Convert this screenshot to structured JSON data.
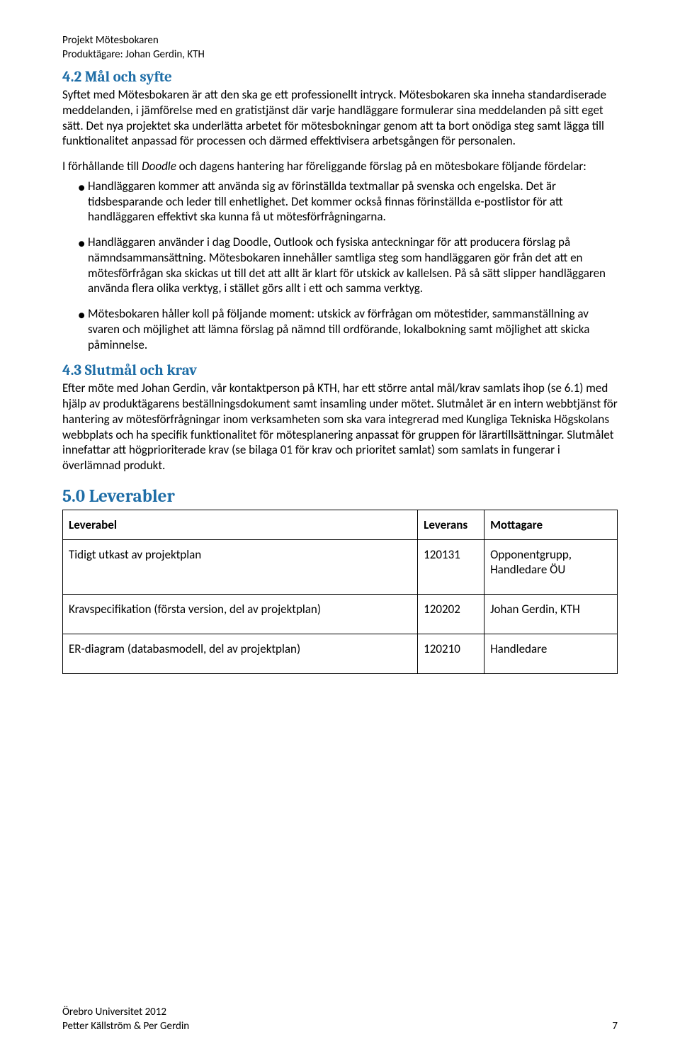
{
  "header": {
    "line1": "Projekt Mötesbokaren",
    "line2": "Produktägare: Johan Gerdin, KTH"
  },
  "sections": {
    "s42": {
      "title": "4.2 Mål och syfte",
      "p1": "Syftet med Mötesbokaren är att den ska ge ett professionellt intryck. Mötesbokaren ska inneha standardiserade meddelanden, i jämförelse med en gratistjänst där varje handläggare formulerar sina meddelanden på sitt eget sätt. Det nya projektet ska underlätta arbetet för mötesbokningar genom att ta bort onödiga steg samt lägga till funktionalitet anpassad för processen och därmed effektivisera arbetsgången för personalen.",
      "p2_pre": "I förhållande till ",
      "p2_italic": "Doodle",
      "p2_post": " och dagens hantering har föreliggande förslag på en mötesbokare följande fördelar:",
      "bullets": [
        "Handläggaren kommer att använda sig av förinställda textmallar på svenska och engelska. Det är tidsbesparande och leder till enhetlighet. Det kommer också finnas förinställda e-postlistor för att handläggaren effektivt ska kunna få ut mötesförfrågningarna.",
        "Handläggaren använder i dag Doodle, Outlook och fysiska anteckningar för att producera förslag på nämndsammansättning. Mötesbokaren innehåller samtliga steg som handläggaren gör från det att en mötesförfrågan ska skickas ut till det att allt är klart för utskick av kallelsen. På så sätt slipper handläggaren använda flera olika verktyg, i stället görs allt i ett och samma verktyg.",
        "Mötesbokaren håller koll på följande moment: utskick av förfrågan om mötestider, sammanställning av svaren och möjlighet att lämna förslag på nämnd till ordförande, lokalbokning samt möjlighet att skicka påminnelse."
      ]
    },
    "s43": {
      "title": "4.3 Slutmål och krav",
      "p1": "Efter möte med Johan Gerdin, vår kontaktperson på KTH, har ett större antal mål/krav samlats ihop (se 6.1) med hjälp av produktägarens beställningsdokument samt insamling under mötet. Slutmålet är en intern webbtjänst för hantering av mötesförfrågningar inom verksamheten som ska vara integrerad med Kungliga Tekniska Högskolans webbplats och ha specifik funktionalitet för mötesplanering anpassat för gruppen för lärartillsättningar.  Slutmålet innefattar att högprioriterade krav (se bilaga 01 för krav och prioritet samlat) som samlats in fungerar i överlämnad produkt."
    },
    "s50": {
      "title": "5.0 Leverabler",
      "columns": [
        "Leverabel",
        "Leverans",
        "Mottagare"
      ],
      "rows": [
        [
          "Tidigt utkast av projektplan",
          "120131",
          "Opponentgrupp, Handledare ÖU"
        ],
        [
          "Kravspecifikation (första version, del av projektplan)",
          "120202",
          "Johan Gerdin, KTH"
        ],
        [
          "ER-diagram (databasmodell, del av projektplan)",
          "120210",
          "Handledare"
        ]
      ]
    }
  },
  "footer": {
    "line1": "Örebro Universitet 2012",
    "line2": "Petter Källström & Per Gerdin",
    "page_number": "7"
  }
}
